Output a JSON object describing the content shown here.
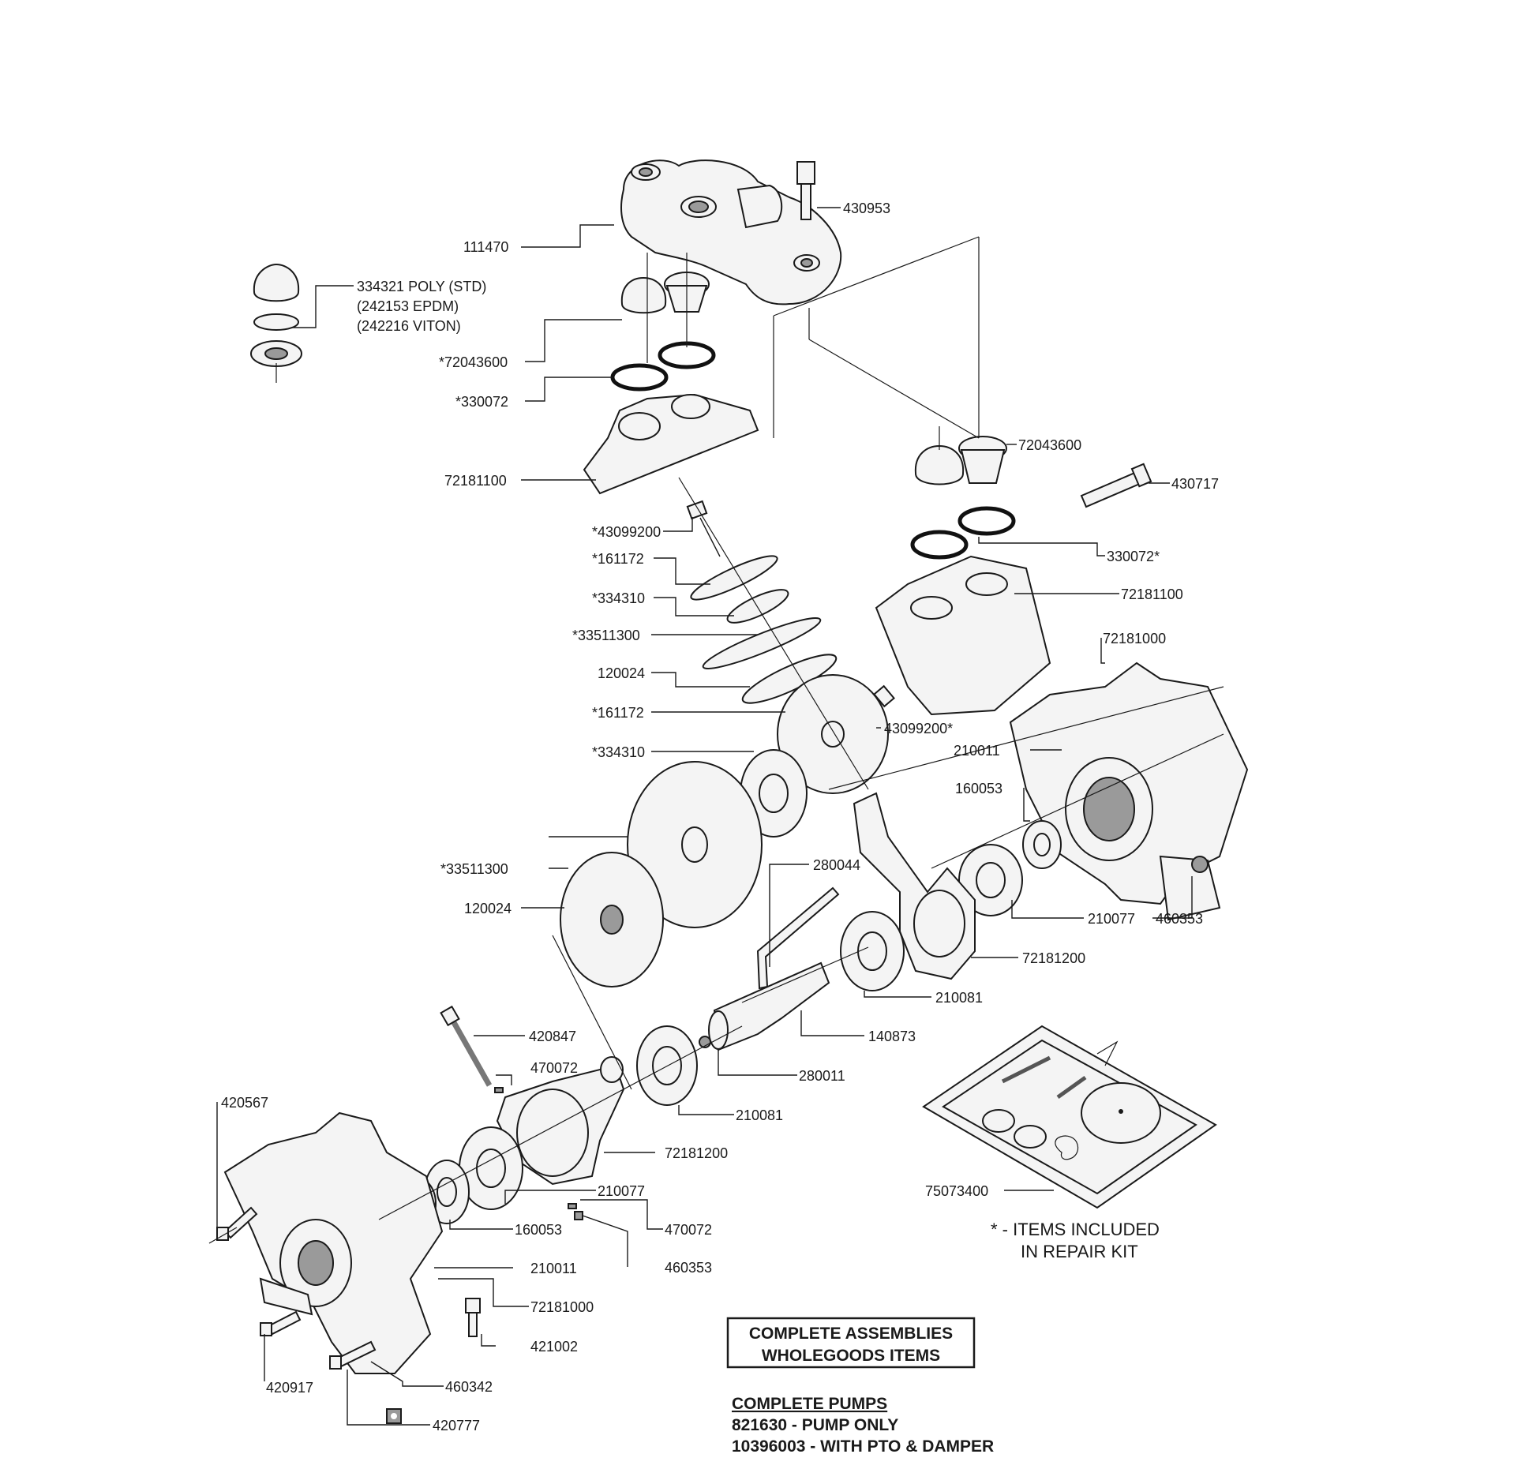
{
  "labels": {
    "l111470": "111470",
    "l430953": "430953",
    "l334321a": "334321 POLY (STD)",
    "l334321b": "(242153 EPDM)",
    "l334321c": "(242216 VITON)",
    "l72043600a": "*72043600",
    "l330072a": "*330072",
    "l72181100a": "72181100",
    "l72043600b": "72043600",
    "l430717": "430717",
    "l43099200a": "*43099200",
    "l330072b": "330072*",
    "l161172a": "*161172",
    "l72181100b": "72181100",
    "l334310a": "*334310",
    "l33511300a": "*33511300",
    "l72181000a": "72181000",
    "l120024a": "120024",
    "l161172b": "*161172",
    "l43099200b": "43099200*",
    "l210011a": "210011",
    "l334310b": "*334310",
    "l160053a": "160053",
    "l33511300b": "*33511300",
    "l280044": "280044",
    "l120024b": "120024",
    "l210077a": "210077",
    "l460353a": "460353",
    "l72181200a": "72181200",
    "l210081a": "210081",
    "l420847": "420847",
    "l140873": "140873",
    "l470072a": "470072",
    "l280011": "280011",
    "l420567": "420567",
    "l210081b": "210081",
    "l72181200b": "72181200",
    "l75073400": "75073400",
    "l210077b": "210077",
    "l470072b": "470072",
    "l160053b": "160053",
    "l460353b": "460353",
    "l210011b": "210011",
    "l72181000b": "72181000",
    "l421002": "421002",
    "l420917": "420917",
    "l460342": "460342",
    "l420777": "420777"
  },
  "note": {
    "line1": "* - ITEMS INCLUDED",
    "line2": "IN REPAIR KIT"
  },
  "assemblies_box": {
    "line1": "COMPLETE ASSEMBLIES",
    "line2": "WHOLEGOODS ITEMS"
  },
  "complete_pumps": {
    "heading": "COMPLETE PUMPS",
    "items": [
      "821630 - PUMP ONLY",
      "10396003 - WITH PTO & DAMPER"
    ]
  }
}
